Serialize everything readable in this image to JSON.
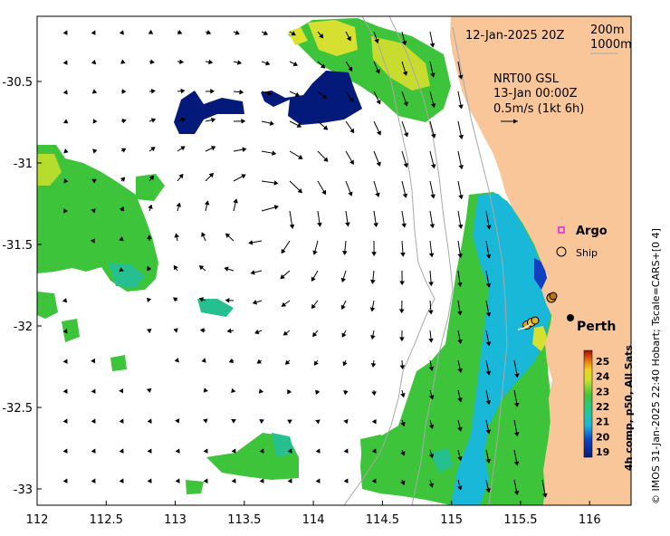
{
  "map": {
    "date_label": "12-Jan-2025 20Z",
    "isobaths": [
      "200m",
      "1000m"
    ],
    "current_model": "NRT00 GSL",
    "current_time": "13-Jan 00:00Z",
    "current_scale": "0.5m/s (1kt 6h)",
    "legend": {
      "argo": "Argo",
      "ship": "Ship"
    },
    "place_label": "Perth",
    "colorbar_label": "4h comp, p50, All Sats",
    "colorbar_ticks": [
      "25",
      "24",
      "23",
      "22",
      "21",
      "20",
      "19"
    ],
    "credit": "© IMOS 31-Jan-2025 22:40 Hobart; Tscale=CARS+[0 4]",
    "x_ticks": [
      "112",
      "112.5",
      "113",
      "113.5",
      "114",
      "114.5",
      "115",
      "115.5",
      "116"
    ],
    "y_ticks": [
      "-30.5",
      "-31",
      "-31.5",
      "-32",
      "-32.5",
      "-33"
    ],
    "lon_range": [
      112,
      116.3
    ],
    "lat_range": [
      -33.1,
      -30.1
    ],
    "colors": {
      "land": "#f9c699",
      "sst_cold": "#041a7a",
      "sst_cyan": "#1ab8d8",
      "sst_green": "#3ec43a",
      "sst_yellow": "#e6e32a",
      "sst_red": "#b01010"
    }
  }
}
